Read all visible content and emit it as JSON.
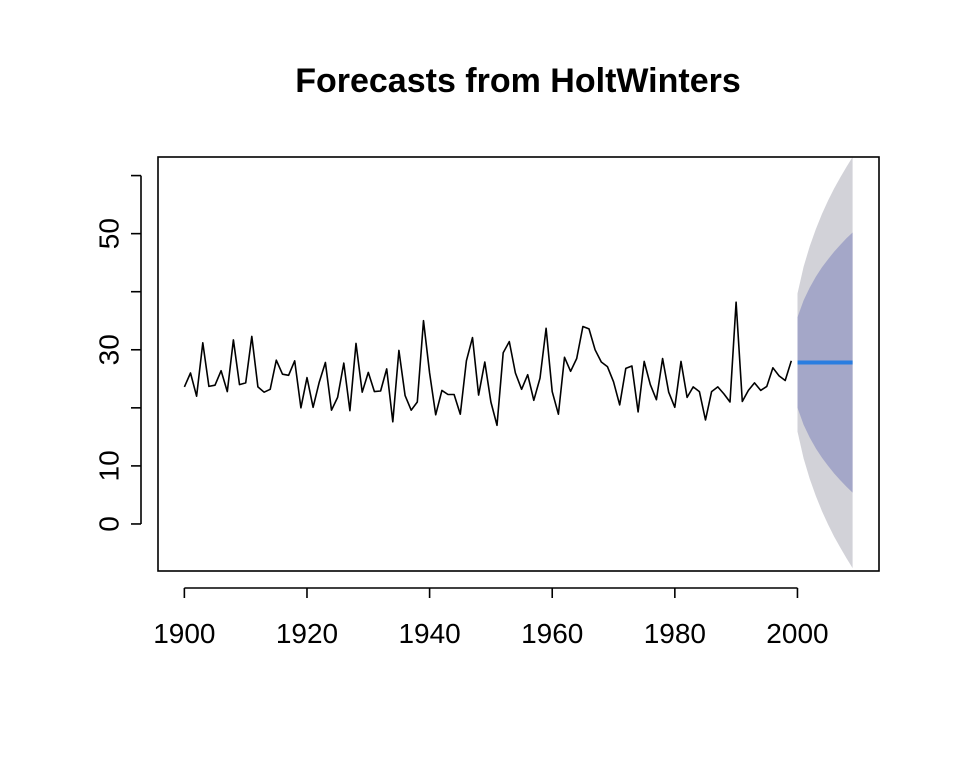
{
  "chart_data": {
    "type": "line",
    "title": "Forecasts from HoltWinters",
    "xlabel": "",
    "ylabel": "",
    "xlim": [
      1895.7,
      2013.3
    ],
    "ylim": [
      -8.1,
      63.2
    ],
    "x_ticks": [
      1900,
      1920,
      1940,
      1960,
      1980,
      2000
    ],
    "y_ticks": [
      0,
      10,
      20,
      30,
      40,
      50,
      60
    ],
    "y_tick_labels": [
      {
        "value": 0,
        "label": "0"
      },
      {
        "value": 10,
        "label": "10"
      },
      {
        "value": 30,
        "label": "30"
      },
      {
        "value": 50,
        "label": "50"
      }
    ],
    "grid": false,
    "legend": "none",
    "colors": {
      "series": "#000000",
      "forecast": "#2a7de0",
      "band95": "#d2d2d8",
      "band80": "#a4a7c8"
    },
    "series": [
      {
        "x": [
          1900,
          1901,
          1902,
          1903,
          1904,
          1905,
          1906,
          1907,
          1908,
          1909,
          1910,
          1911,
          1912,
          1913,
          1914,
          1915,
          1916,
          1917,
          1918,
          1919,
          1920,
          1921,
          1922,
          1923,
          1924,
          1925,
          1926,
          1927,
          1928,
          1929,
          1930,
          1931,
          1932,
          1933,
          1934,
          1935,
          1936,
          1937,
          1938,
          1939,
          1940,
          1941,
          1942,
          1943,
          1944,
          1945,
          1946,
          1947,
          1948,
          1949,
          1950,
          1951,
          1952,
          1953,
          1954,
          1955,
          1956,
          1957,
          1958,
          1959,
          1960,
          1961,
          1962,
          1963,
          1964,
          1965,
          1966,
          1967,
          1968,
          1969,
          1970,
          1971,
          1972,
          1973,
          1974,
          1975,
          1976,
          1977,
          1978,
          1979,
          1980,
          1981,
          1982,
          1983,
          1984,
          1985,
          1986,
          1987,
          1988,
          1989,
          1990,
          1991,
          1992,
          1993,
          1994,
          1995,
          1996,
          1997,
          1998,
          1999
        ],
        "values": [
          23.6,
          26.0,
          22.0,
          31.2,
          23.7,
          23.9,
          26.4,
          22.8,
          31.7,
          24.0,
          24.3,
          32.3,
          23.6,
          22.7,
          23.2,
          28.2,
          25.8,
          25.6,
          28.1,
          20.0,
          25.2,
          20.1,
          24.4,
          27.8,
          19.6,
          21.8,
          27.7,
          19.5,
          31.1,
          22.7,
          26.1,
          22.8,
          22.9,
          26.7,
          17.6,
          29.9,
          22.1,
          19.6,
          21.0,
          35.0,
          26.0,
          18.8,
          23.0,
          22.3,
          22.3,
          18.9,
          28.1,
          32.1,
          22.2,
          27.9,
          21.0,
          17.0,
          29.5,
          31.4,
          26.0,
          23.2,
          25.7,
          21.3,
          25.1,
          33.7,
          22.8,
          18.9,
          28.7,
          26.3,
          28.5,
          34.0,
          33.6,
          30.0,
          27.9,
          27.1,
          24.5,
          20.5,
          26.8,
          27.2,
          19.3,
          28.0,
          24.0,
          21.4,
          28.5,
          22.7,
          20.1,
          28.0,
          21.8,
          23.6,
          22.8,
          17.9,
          22.8,
          23.6,
          22.4,
          21.0,
          38.2,
          21.1,
          23.0,
          24.3,
          23.0,
          23.7,
          26.9,
          25.5,
          24.7,
          28.1
        ]
      },
      {
        "x": [
          2000,
          2009
        ],
        "values": [
          27.8,
          27.8
        ]
      }
    ],
    "forecast_bands": {
      "x": [
        2000,
        2001,
        2002,
        2003,
        2004,
        2005,
        2006,
        2007,
        2008,
        2009
      ],
      "lo80": [
        20.0,
        17.1,
        14.9,
        13.0,
        11.4,
        10.0,
        8.7,
        7.5,
        6.4,
        5.4
      ],
      "hi80": [
        35.6,
        38.5,
        40.7,
        42.6,
        44.2,
        45.6,
        46.9,
        48.1,
        49.2,
        50.2
      ],
      "lo95": [
        15.9,
        11.3,
        7.8,
        4.8,
        2.2,
        -0.1,
        -2.2,
        -4.1,
        -5.9,
        -7.6
      ],
      "hi95": [
        39.7,
        44.3,
        47.8,
        50.8,
        53.4,
        55.7,
        57.8,
        59.7,
        61.5,
        63.2
      ]
    }
  }
}
